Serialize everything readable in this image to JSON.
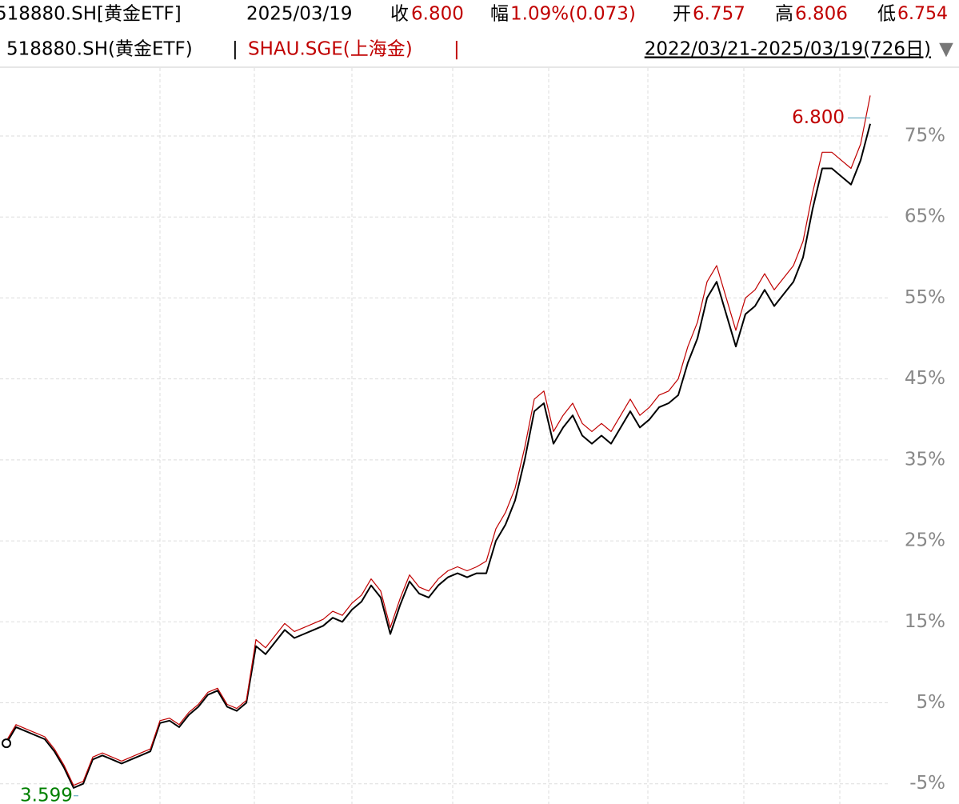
{
  "header": {
    "code_name": "518880.SH[黄金ETF]",
    "date": "2025/03/19",
    "close_label": "收",
    "close": "6.800",
    "change_label": "幅",
    "change": "1.09%(0.073)",
    "open_label": "开",
    "open": "6.757",
    "high_label": "高",
    "high": "6.806",
    "low_label": "低",
    "low": "6.754",
    "separator": "|",
    "range": "2022/03/21-2025/03/19(726日)",
    "menu_arrow": "▼"
  },
  "chart_data": {
    "type": "line",
    "series": [
      {
        "name": "518880.SH(黄金ETF)",
        "color": "#000000",
        "values": [
          0,
          2,
          1.5,
          1,
          0.5,
          -1,
          -3,
          -5.5,
          -5,
          -2,
          -1.5,
          -2,
          -2.5,
          -2,
          -1.5,
          -1,
          2.5,
          2.8,
          2,
          3.5,
          4.5,
          6,
          6.5,
          4.5,
          4,
          5,
          12,
          11,
          12.5,
          14,
          13,
          13.5,
          14,
          14.5,
          15.5,
          15,
          16.5,
          17.5,
          19.5,
          18,
          13.5,
          17,
          20,
          18.5,
          18,
          19.5,
          20.5,
          21,
          20.5,
          21,
          21,
          25,
          27,
          30,
          35,
          41,
          42,
          37,
          39,
          40.5,
          38,
          37,
          38,
          37,
          39,
          41,
          39,
          40,
          41.5,
          42,
          43,
          47,
          50,
          55,
          57,
          53,
          49,
          53,
          54,
          56,
          54,
          55.5,
          57,
          60,
          66,
          71,
          71,
          70,
          69,
          72,
          76.5
        ]
      },
      {
        "name": "SHAU.SGE(上海金)",
        "color": "#c00000",
        "values": [
          0.3,
          2.3,
          1.8,
          1.3,
          0.8,
          -0.7,
          -2.7,
          -5.2,
          -4.7,
          -1.7,
          -1.2,
          -1.7,
          -2.2,
          -1.7,
          -1.2,
          -0.7,
          2.8,
          3.1,
          2.3,
          3.8,
          4.8,
          6.3,
          6.8,
          4.8,
          4.3,
          5.3,
          12.8,
          11.8,
          13.3,
          14.8,
          13.8,
          14.3,
          14.8,
          15.3,
          16.3,
          15.8,
          17.3,
          18.3,
          20.3,
          18.8,
          14.3,
          17.8,
          20.8,
          19.3,
          18.8,
          20.3,
          21.3,
          21.8,
          21.3,
          21.8,
          22.5,
          26.5,
          28.5,
          31.5,
          36.5,
          42.5,
          43.5,
          38.5,
          40.5,
          42,
          39.5,
          38.5,
          39.5,
          38.5,
          40.5,
          42.5,
          40.5,
          41.5,
          43,
          43.5,
          45,
          49,
          52,
          57,
          59,
          55,
          51,
          55,
          56,
          58,
          56,
          57.5,
          59,
          62,
          68,
          73,
          73,
          72,
          71,
          74,
          80
        ]
      }
    ],
    "annotations": {
      "max_label": "6.800",
      "min_label": "3.599"
    },
    "ylim": [
      -7.5,
      83.4
    ],
    "yticks": [
      {
        "value": -5,
        "label": "-5%"
      },
      {
        "value": 5,
        "label": "5%"
      },
      {
        "value": 15,
        "label": "15%"
      },
      {
        "value": 25,
        "label": "25%"
      },
      {
        "value": 35,
        "label": "35%"
      },
      {
        "value": 45,
        "label": "45%"
      },
      {
        "value": 55,
        "label": "55%"
      },
      {
        "value": 65,
        "label": "65%"
      },
      {
        "value": 75,
        "label": "75%"
      }
    ],
    "grid": true
  }
}
